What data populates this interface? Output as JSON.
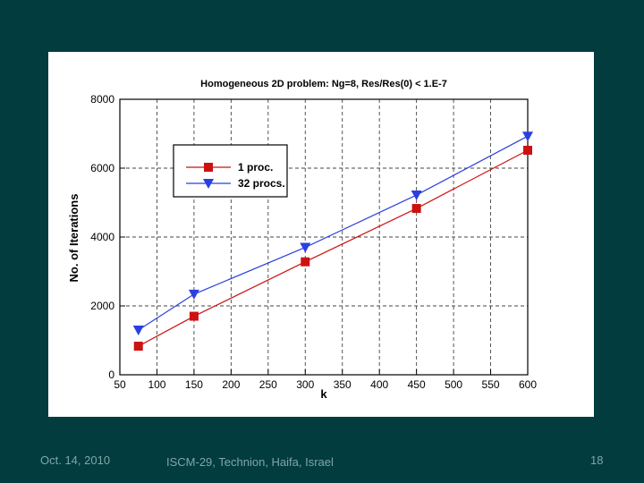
{
  "slide": {
    "background": "#023c3f",
    "footer": {
      "date": "Oct. 14, 2010",
      "venue": "ISCM-29, Technion, Haifa, Israel",
      "page": "18"
    }
  },
  "chart_data": {
    "type": "line",
    "title": "Homogeneous 2D problem:  Ng=8,  Res/Res(0) < 1.E-7",
    "xlabel": "k",
    "ylabel": "No. of  Iterations",
    "xlim": [
      50,
      600
    ],
    "ylim": [
      0,
      8000
    ],
    "xticks": [
      50,
      100,
      150,
      200,
      250,
      300,
      350,
      400,
      450,
      500,
      550,
      600
    ],
    "yticks": [
      0,
      2000,
      4000,
      6000,
      8000
    ],
    "grid": "dashed",
    "legend_position": "top-left",
    "series": [
      {
        "name": "1  proc.",
        "color": "#cc1111",
        "marker": "square",
        "x": [
          75,
          150,
          300,
          450,
          600
        ],
        "y": [
          830,
          1700,
          3280,
          4830,
          6520
        ]
      },
      {
        "name": "32  procs.",
        "color": "#2b3fe0",
        "marker": "triangle-down",
        "x": [
          75,
          150,
          300,
          450,
          600
        ],
        "y": [
          1300,
          2340,
          3700,
          5220,
          6930
        ]
      }
    ]
  }
}
